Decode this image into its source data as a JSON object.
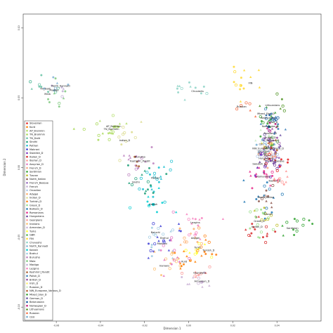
{
  "chart_data": {
    "type": "scatter",
    "title": "",
    "xlabel": "Dimension 1",
    "ylabel": "Dimension 2",
    "xlim": [
      -0.075,
      0.06
    ],
    "ylim": [
      -0.11,
      0.11
    ],
    "x_ticks": [
      {
        "value": -0.06,
        "label": "-0.06"
      },
      {
        "value": -0.04,
        "label": "-0.04"
      },
      {
        "value": -0.02,
        "label": "-0.02"
      },
      {
        "value": 0.0,
        "label": "0.00"
      },
      {
        "value": 0.02,
        "label": "0.02"
      },
      {
        "value": 0.04,
        "label": "0.04"
      }
    ],
    "y_ticks": [
      {
        "value": 0.1,
        "label": "0.10"
      },
      {
        "value": 0.05,
        "label": "0.05"
      },
      {
        "value": 0.0,
        "label": "0.00"
      },
      {
        "value": -0.05,
        "label": "-0.05"
      },
      {
        "value": -0.1,
        "label": "-0.10"
      }
    ],
    "legend_placement": "bottom-left",
    "legend": [
      {
        "name": "Slovenian",
        "color": "#e41a1c"
      },
      {
        "name": "Kurd",
        "color": "#ff7f00"
      },
      {
        "name": "AP_Brahmin",
        "color": "#b3de69"
      },
      {
        "name": "TN_Brahmin",
        "color": "#a6d854"
      },
      {
        "name": "TN_Dalit",
        "color": "#66c2a5"
      },
      {
        "name": "Sindhi",
        "color": "#1b9e77"
      },
      {
        "name": "Pathan",
        "color": "#17becf"
      },
      {
        "name": "Makrani",
        "color": "#3a3ad4"
      },
      {
        "name": "Swedish_D",
        "color": "#7b2fbe"
      },
      {
        "name": "Italian_D",
        "color": "#d62728"
      },
      {
        "name": "Iberian_D",
        "color": "#ff9896"
      },
      {
        "name": "Assyrian_D",
        "color": "#e377c2"
      },
      {
        "name": "French_D",
        "color": "#f4a582"
      },
      {
        "name": "Sardinian",
        "color": "#2ca02c"
      },
      {
        "name": "Tuscan",
        "color": "#bcbd22"
      },
      {
        "name": "North_Italian",
        "color": "#8c564b"
      },
      {
        "name": "French_Basque",
        "color": "#9467bd"
      },
      {
        "name": "French",
        "color": "#c5b0d5"
      },
      {
        "name": "Orcadian",
        "color": "#aec7e8"
      },
      {
        "name": "Adygei",
        "color": "#fdae6b"
      },
      {
        "name": "Indian_D",
        "color": "#dbdb8d"
      },
      {
        "name": "Turkish_D",
        "color": "#ff7f0e"
      },
      {
        "name": "Greek_D",
        "color": "#98df8a"
      },
      {
        "name": "Balkans_D",
        "color": "#1f77b4"
      },
      {
        "name": "Romanians",
        "color": "#e7298a"
      },
      {
        "name": "Hungarians",
        "color": "#6a3d9a"
      },
      {
        "name": "Georgians",
        "color": "#fb9a99"
      },
      {
        "name": "Iranians",
        "color": "#fdbf6f"
      },
      {
        "name": "Armenian_D",
        "color": "#cab2d6"
      },
      {
        "name": "Turks",
        "color": "#ffff33"
      },
      {
        "name": "GBR",
        "color": "#4daf4a"
      },
      {
        "name": "FIN",
        "color": "#ffd92f"
      },
      {
        "name": "Chuvashs",
        "color": "#8dd3c7"
      },
      {
        "name": "North_Kannadi",
        "color": "#80b1d3"
      },
      {
        "name": "Kalash",
        "color": "#00ced1"
      },
      {
        "name": "Brahui",
        "color": "#9ecae1"
      },
      {
        "name": "Burusho",
        "color": "#bc80bd"
      },
      {
        "name": "Mala",
        "color": "#7fc97f"
      },
      {
        "name": "Madiga",
        "color": "#beaed4"
      },
      {
        "name": "Lezgins",
        "color": "#f781bf"
      },
      {
        "name": "Kashmiri_Pandit",
        "color": "#a65628"
      },
      {
        "name": "Polish_D",
        "color": "#377eb8"
      },
      {
        "name": "British_D",
        "color": "#984ea3"
      },
      {
        "name": "Irish_D",
        "color": "#ffed6f"
      },
      {
        "name": "Russian_D",
        "color": "#ccebc5"
      },
      {
        "name": "NW_European_Various_D",
        "color": "#b15928"
      },
      {
        "name": "Mixed_Slav_D",
        "color": "#33a02c"
      },
      {
        "name": "German_D",
        "color": "#6a51a3"
      },
      {
        "name": "Belorussian",
        "color": "#08519c"
      },
      {
        "name": "Norwegian_D",
        "color": "#c51b7d"
      },
      {
        "name": "Lithuanians",
        "color": "#4d9221"
      },
      {
        "name": "Russian",
        "color": "#f46d43"
      },
      {
        "name": "CEU",
        "color": "#74add1"
      }
    ],
    "point_labels": [
      {
        "text": "North_Kannadi",
        "x": -0.058,
        "y": 0.058
      },
      {
        "text": "TN_Dalit",
        "x": -0.065,
        "y": 0.056
      },
      {
        "text": "Madiga",
        "x": -0.061,
        "y": 0.055
      },
      {
        "text": "Mala",
        "x": -0.064,
        "y": 0.052
      },
      {
        "text": "AP_Brahmin",
        "x": -0.034,
        "y": 0.029
      },
      {
        "text": "TN_Brahmin",
        "x": -0.035,
        "y": 0.027
      },
      {
        "text": "Indian_D",
        "x": -0.029,
        "y": 0.019
      },
      {
        "text": "Burusho",
        "x": -0.022,
        "y": 0.007
      },
      {
        "text": "Kashmiri_Pandit",
        "x": -0.022,
        "y": 0.004
      },
      {
        "text": "Pathan",
        "x": -0.015,
        "y": -0.008
      },
      {
        "text": "Sindhi",
        "x": -0.024,
        "y": -0.011
      },
      {
        "text": "Kalash",
        "x": -0.016,
        "y": -0.027
      },
      {
        "text": "Baluchi",
        "x": -0.015,
        "y": -0.047
      },
      {
        "text": "Brahui",
        "x": -0.011,
        "y": -0.051
      },
      {
        "text": "Makrani",
        "x": -0.012,
        "y": -0.055
      },
      {
        "text": "Chuvashs",
        "x": 0.004,
        "y": 0.054
      },
      {
        "text": "FIN",
        "x": 0.028,
        "y": 0.06
      },
      {
        "text": "Russian",
        "x": 0.024,
        "y": 0.043
      },
      {
        "text": "Lithuanians",
        "x": 0.038,
        "y": 0.044
      },
      {
        "text": "Mixed_Slav_D",
        "x": 0.035,
        "y": 0.038
      },
      {
        "text": "Belorussian",
        "x": 0.036,
        "y": 0.035
      },
      {
        "text": "Polish_D",
        "x": 0.038,
        "y": 0.032
      },
      {
        "text": "Norwegian_D",
        "x": 0.037,
        "y": 0.029
      },
      {
        "text": "Russian_D",
        "x": 0.037,
        "y": 0.024
      },
      {
        "text": "British_D",
        "x": 0.037,
        "y": 0.021
      },
      {
        "text": "German_D",
        "x": 0.038,
        "y": 0.019
      },
      {
        "text": "CEU",
        "x": 0.033,
        "y": 0.016
      },
      {
        "text": "Irish_D",
        "x": 0.036,
        "y": 0.014
      },
      {
        "text": "NW_European_Various_D",
        "x": 0.036,
        "y": 0.013
      },
      {
        "text": "Orcadian",
        "x": 0.034,
        "y": 0.011
      },
      {
        "text": "French",
        "x": 0.036,
        "y": 0.008
      },
      {
        "text": "Hungarians",
        "x": 0.035,
        "y": 0.006
      },
      {
        "text": "French_Basque",
        "x": 0.039,
        "y": 0.004
      },
      {
        "text": "Swedish_D",
        "x": 0.032,
        "y": 0.002
      },
      {
        "text": "Romanians",
        "x": 0.034,
        "y": -0.007
      },
      {
        "text": "Iberian_D",
        "x": 0.039,
        "y": -0.01
      },
      {
        "text": "North_Italian",
        "x": 0.035,
        "y": -0.022
      },
      {
        "text": "Tuscan",
        "x": 0.036,
        "y": -0.034
      },
      {
        "text": "Greek_D",
        "x": 0.032,
        "y": -0.039
      },
      {
        "text": "Italian_D",
        "x": 0.031,
        "y": -0.043
      },
      {
        "text": "Sardinian",
        "x": 0.047,
        "y": -0.044
      },
      {
        "text": "Lezgins",
        "x": 0.003,
        "y": -0.04
      },
      {
        "text": "Adygei",
        "x": 0.003,
        "y": -0.051
      },
      {
        "text": "Turks",
        "x": 0.004,
        "y": -0.058
      },
      {
        "text": "Turkish_D",
        "x": 0.009,
        "y": -0.06
      },
      {
        "text": "Iranians",
        "x": -0.011,
        "y": -0.071
      },
      {
        "text": "Kurd",
        "x": -0.002,
        "y": -0.068
      },
      {
        "text": "Georgians",
        "x": 0.005,
        "y": -0.076
      },
      {
        "text": "Armenian_D",
        "x": 0.006,
        "y": -0.082
      }
    ],
    "clusters": [
      {
        "color": "#66c2a5",
        "cx": -0.064,
        "cy": 0.06,
        "sx": 0.004,
        "sy": 0.006,
        "n": 10
      },
      {
        "color": "#7fc97f",
        "cx": -0.061,
        "cy": 0.052,
        "sx": 0.004,
        "sy": 0.005,
        "n": 8
      },
      {
        "color": "#80b1d3",
        "cx": -0.059,
        "cy": 0.058,
        "sx": 0.003,
        "sy": 0.004,
        "n": 6
      },
      {
        "color": "#beaed4",
        "cx": -0.06,
        "cy": 0.055,
        "sx": 0.003,
        "sy": 0.004,
        "n": 5
      },
      {
        "color": "#b3de69",
        "cx": -0.036,
        "cy": 0.03,
        "sx": 0.004,
        "sy": 0.004,
        "n": 12
      },
      {
        "color": "#a6d854",
        "cx": -0.038,
        "cy": 0.026,
        "sx": 0.004,
        "sy": 0.004,
        "n": 10
      },
      {
        "color": "#dbdb8d",
        "cx": -0.028,
        "cy": 0.02,
        "sx": 0.005,
        "sy": 0.005,
        "n": 10
      },
      {
        "color": "#bc80bd",
        "cx": -0.024,
        "cy": 0.006,
        "sx": 0.004,
        "sy": 0.006,
        "n": 14
      },
      {
        "color": "#a65628",
        "cx": -0.022,
        "cy": 0.004,
        "sx": 0.002,
        "sy": 0.002,
        "n": 4
      },
      {
        "color": "#17becf",
        "cx": -0.016,
        "cy": -0.008,
        "sx": 0.004,
        "sy": 0.008,
        "n": 20
      },
      {
        "color": "#1b9e77",
        "cx": -0.023,
        "cy": -0.01,
        "sx": 0.004,
        "sy": 0.007,
        "n": 14
      },
      {
        "color": "#00ced1",
        "cx": -0.016,
        "cy": -0.026,
        "sx": 0.004,
        "sy": 0.004,
        "n": 12
      },
      {
        "color": "#9ecae1",
        "cx": -0.012,
        "cy": -0.048,
        "sx": 0.004,
        "sy": 0.006,
        "n": 14
      },
      {
        "color": "#3a3ad4",
        "cx": -0.012,
        "cy": -0.05,
        "sx": 0.005,
        "sy": 0.009,
        "n": 16
      },
      {
        "color": "#8dd3c7",
        "cx": 0.002,
        "cy": 0.057,
        "sx": 0.005,
        "sy": 0.004,
        "n": 12
      },
      {
        "color": "#ffd92f",
        "cx": 0.026,
        "cy": 0.06,
        "sx": 0.004,
        "sy": 0.008,
        "n": 14
      },
      {
        "color": "#f46d43",
        "cx": 0.026,
        "cy": 0.044,
        "sx": 0.003,
        "sy": 0.003,
        "n": 6
      },
      {
        "color": "#4d9221",
        "cx": 0.039,
        "cy": 0.044,
        "sx": 0.003,
        "sy": 0.003,
        "n": 6
      },
      {
        "color": "#33a02c",
        "cx": 0.037,
        "cy": 0.036,
        "sx": 0.003,
        "sy": 0.006,
        "n": 14
      },
      {
        "color": "#08519c",
        "cx": 0.038,
        "cy": 0.034,
        "sx": 0.002,
        "sy": 0.004,
        "n": 8
      },
      {
        "color": "#377eb8",
        "cx": 0.038,
        "cy": 0.031,
        "sx": 0.003,
        "sy": 0.005,
        "n": 12
      },
      {
        "color": "#c51b7d",
        "cx": 0.038,
        "cy": 0.028,
        "sx": 0.002,
        "sy": 0.003,
        "n": 6
      },
      {
        "color": "#ccebc5",
        "cx": 0.036,
        "cy": 0.022,
        "sx": 0.003,
        "sy": 0.005,
        "n": 8
      },
      {
        "color": "#984ea3",
        "cx": 0.037,
        "cy": 0.018,
        "sx": 0.003,
        "sy": 0.006,
        "n": 14
      },
      {
        "color": "#6a51a3",
        "cx": 0.039,
        "cy": 0.018,
        "sx": 0.003,
        "sy": 0.006,
        "n": 12
      },
      {
        "color": "#74add1",
        "cx": 0.034,
        "cy": 0.015,
        "sx": 0.002,
        "sy": 0.004,
        "n": 8
      },
      {
        "color": "#b15928",
        "cx": 0.036,
        "cy": 0.013,
        "sx": 0.003,
        "sy": 0.004,
        "n": 10
      },
      {
        "color": "#aec7e8",
        "cx": 0.035,
        "cy": 0.011,
        "sx": 0.002,
        "sy": 0.003,
        "n": 6
      },
      {
        "color": "#c5b0d5",
        "cx": 0.037,
        "cy": 0.007,
        "sx": 0.003,
        "sy": 0.004,
        "n": 8
      },
      {
        "color": "#6a3d9a",
        "cx": 0.037,
        "cy": 0.004,
        "sx": 0.003,
        "sy": 0.007,
        "n": 12
      },
      {
        "color": "#9467bd",
        "cx": 0.04,
        "cy": 0.004,
        "sx": 0.002,
        "sy": 0.003,
        "n": 6
      },
      {
        "color": "#7b2fbe",
        "cx": 0.034,
        "cy": 0.003,
        "sx": 0.003,
        "sy": 0.006,
        "n": 10
      },
      {
        "color": "#e7298a",
        "cx": 0.035,
        "cy": -0.006,
        "sx": 0.004,
        "sy": 0.005,
        "n": 14
      },
      {
        "color": "#ff9896",
        "cx": 0.04,
        "cy": -0.01,
        "sx": 0.003,
        "sy": 0.005,
        "n": 12
      },
      {
        "color": "#8c564b",
        "cx": 0.036,
        "cy": -0.022,
        "sx": 0.003,
        "sy": 0.005,
        "n": 10
      },
      {
        "color": "#1f77b4",
        "cx": 0.034,
        "cy": -0.018,
        "sx": 0.005,
        "sy": 0.01,
        "n": 14
      },
      {
        "color": "#bcbd22",
        "cx": 0.036,
        "cy": -0.033,
        "sx": 0.003,
        "sy": 0.004,
        "n": 8
      },
      {
        "color": "#98df8a",
        "cx": 0.032,
        "cy": -0.038,
        "sx": 0.004,
        "sy": 0.005,
        "n": 14
      },
      {
        "color": "#d62728",
        "cx": 0.031,
        "cy": -0.042,
        "sx": 0.004,
        "sy": 0.005,
        "n": 14
      },
      {
        "color": "#2ca02c",
        "cx": 0.047,
        "cy": -0.042,
        "sx": 0.003,
        "sy": 0.004,
        "n": 12
      },
      {
        "color": "#ffed6f",
        "cx": 0.036,
        "cy": 0.015,
        "sx": 0.002,
        "sy": 0.003,
        "n": 6
      },
      {
        "color": "#4daf4a",
        "cx": 0.037,
        "cy": 0.015,
        "sx": 0.002,
        "sy": 0.003,
        "n": 6
      },
      {
        "color": "#f4a582",
        "cx": 0.037,
        "cy": 0.008,
        "sx": 0.002,
        "sy": 0.004,
        "n": 8
      },
      {
        "color": "#e41a1c",
        "cx": 0.04,
        "cy": 0.008,
        "sx": 0.003,
        "sy": 0.008,
        "n": 10
      },
      {
        "color": "#f781bf",
        "cx": 0.004,
        "cy": -0.042,
        "sx": 0.004,
        "sy": 0.005,
        "n": 14
      },
      {
        "color": "#fdae6b",
        "cx": 0.002,
        "cy": -0.051,
        "sx": 0.003,
        "sy": 0.004,
        "n": 12
      },
      {
        "color": "#ffff33",
        "cx": 0.004,
        "cy": -0.058,
        "sx": 0.003,
        "sy": 0.004,
        "n": 10
      },
      {
        "color": "#ff7f0e",
        "cx": 0.008,
        "cy": -0.059,
        "sx": 0.003,
        "sy": 0.004,
        "n": 10
      },
      {
        "color": "#fdbf6f",
        "cx": -0.008,
        "cy": -0.068,
        "sx": 0.004,
        "sy": 0.006,
        "n": 14
      },
      {
        "color": "#ff7f00",
        "cx": -0.002,
        "cy": -0.067,
        "sx": 0.003,
        "sy": 0.005,
        "n": 10
      },
      {
        "color": "#fb9a99",
        "cx": 0.005,
        "cy": -0.075,
        "sx": 0.003,
        "sy": 0.003,
        "n": 10
      },
      {
        "color": "#cab2d6",
        "cx": 0.006,
        "cy": -0.081,
        "sx": 0.004,
        "sy": 0.003,
        "n": 12
      },
      {
        "color": "#e377c2",
        "cx": -0.006,
        "cy": -0.063,
        "sx": 0.004,
        "sy": 0.008,
        "n": 14
      }
    ]
  }
}
